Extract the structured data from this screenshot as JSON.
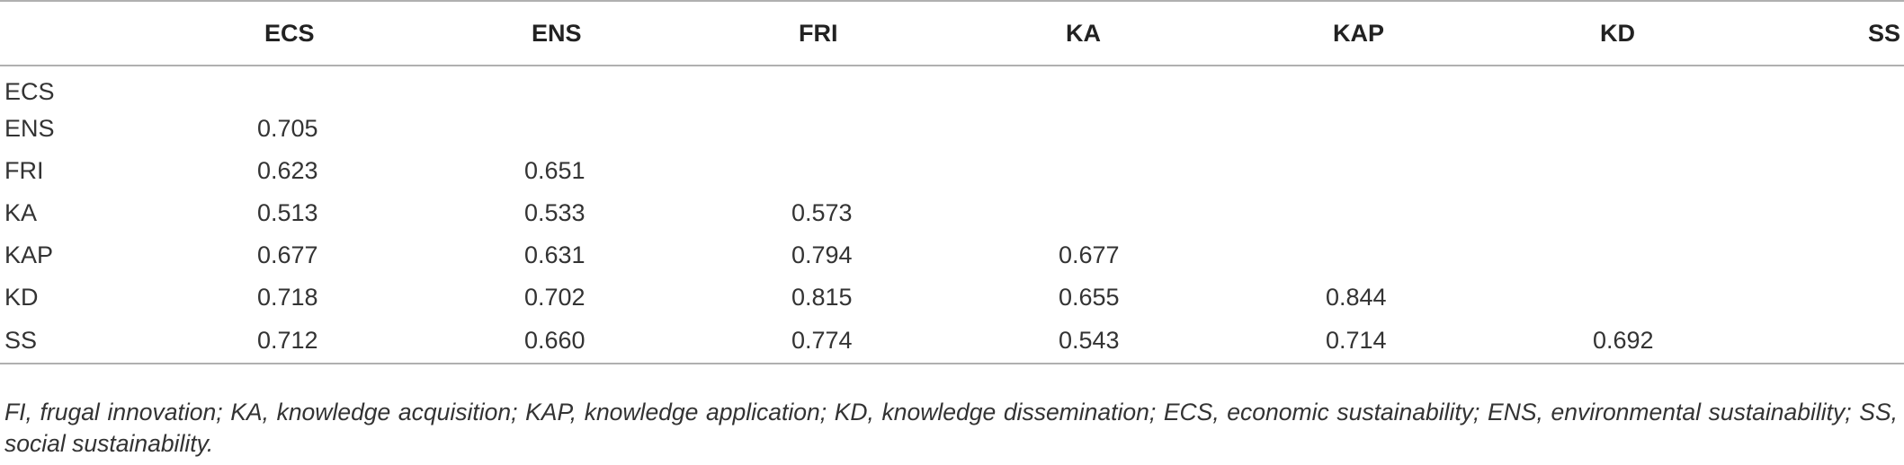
{
  "table": {
    "corner": "",
    "headers": [
      "ECS",
      "ENS",
      "FRI",
      "KA",
      "KAP",
      "KD",
      "SS"
    ],
    "rows": [
      {
        "label": "ECS",
        "cells": [
          "",
          "",
          "",
          "",
          "",
          "",
          ""
        ]
      },
      {
        "label": "ENS",
        "cells": [
          "0.705",
          "",
          "",
          "",
          "",
          "",
          ""
        ]
      },
      {
        "label": "FRI",
        "cells": [
          "0.623",
          "0.651",
          "",
          "",
          "",
          "",
          ""
        ]
      },
      {
        "label": "KA",
        "cells": [
          "0.513",
          "0.533",
          "0.573",
          "",
          "",
          "",
          ""
        ]
      },
      {
        "label": "KAP",
        "cells": [
          "0.677",
          "0.631",
          "0.794",
          "0.677",
          "",
          "",
          ""
        ]
      },
      {
        "label": "KD",
        "cells": [
          "0.718",
          "0.702",
          "0.815",
          "0.655",
          "0.844",
          "",
          ""
        ]
      },
      {
        "label": "SS",
        "cells": [
          "0.712",
          "0.660",
          "0.774",
          "0.543",
          "0.714",
          "0.692",
          ""
        ]
      }
    ]
  },
  "footnote": "FI, frugal innovation; KA, knowledge acquisition; KAP, knowledge application; KD, knowledge dissemination; ECS, economic sustainability; ENS, environmental sustainability; SS, social sustainability."
}
